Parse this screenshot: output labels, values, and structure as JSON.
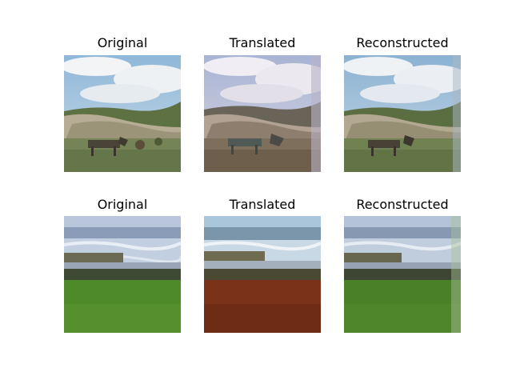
{
  "rows": [
    {
      "panels": [
        {
          "title": "Original",
          "scene": "landscape-animal-original"
        },
        {
          "title": "Translated",
          "scene": "landscape-animal-translated"
        },
        {
          "title": "Reconstructed",
          "scene": "landscape-animal-reconstructed"
        }
      ]
    },
    {
      "panels": [
        {
          "title": "Original",
          "scene": "coast-grass-original"
        },
        {
          "title": "Translated",
          "scene": "coast-red-field-translated"
        },
        {
          "title": "Reconstructed",
          "scene": "coast-grass-reconstructed"
        }
      ]
    }
  ]
}
